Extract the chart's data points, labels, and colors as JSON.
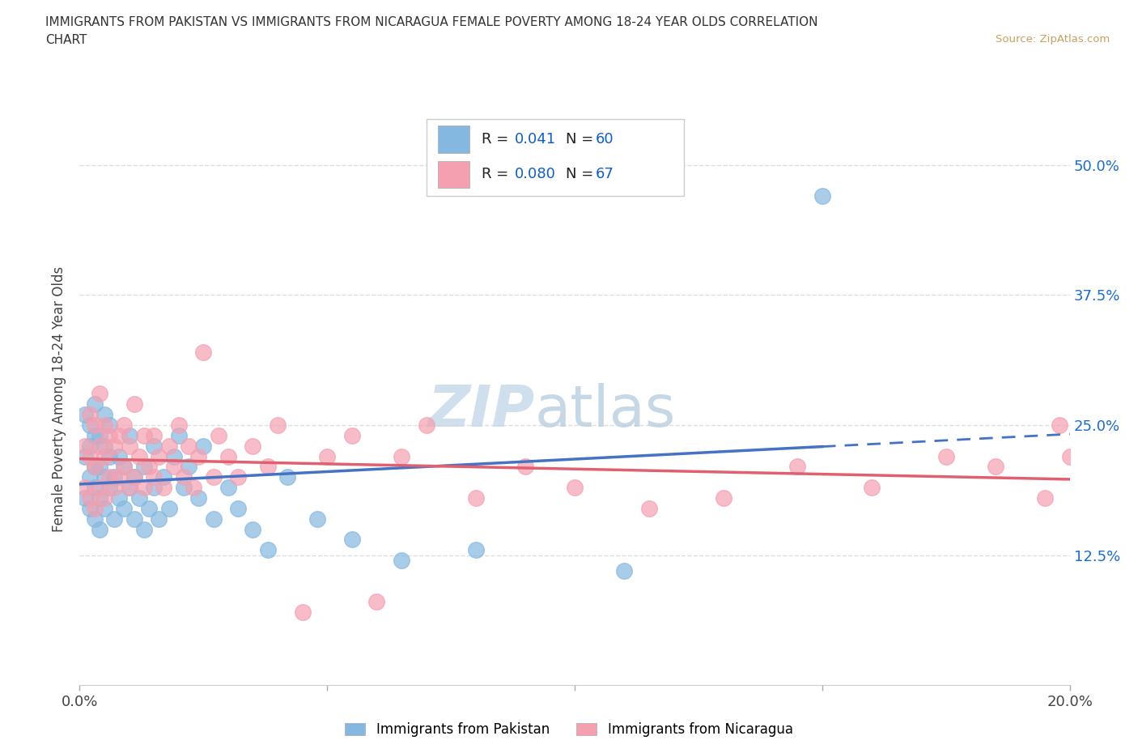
{
  "title_line1": "IMMIGRANTS FROM PAKISTAN VS IMMIGRANTS FROM NICARAGUA FEMALE POVERTY AMONG 18-24 YEAR OLDS CORRELATION",
  "title_line2": "CHART",
  "source": "Source: ZipAtlas.com",
  "ylabel": "Female Poverty Among 18-24 Year Olds",
  "xlim": [
    0.0,
    0.2
  ],
  "ylim": [
    0.0,
    0.55
  ],
  "pakistan_color": "#85b8e0",
  "nicaragua_color": "#f4a0b0",
  "pakistan_line_color": "#4472c4",
  "nicaragua_line_color": "#e06070",
  "pakistan_R": 0.041,
  "pakistan_N": 60,
  "nicaragua_R": 0.08,
  "nicaragua_N": 67,
  "blue_text_color": "#1060c0",
  "pakistan_x": [
    0.001,
    0.001,
    0.001,
    0.002,
    0.002,
    0.002,
    0.002,
    0.003,
    0.003,
    0.003,
    0.003,
    0.003,
    0.004,
    0.004,
    0.004,
    0.004,
    0.005,
    0.005,
    0.005,
    0.005,
    0.006,
    0.006,
    0.006,
    0.007,
    0.007,
    0.008,
    0.008,
    0.009,
    0.009,
    0.01,
    0.01,
    0.011,
    0.011,
    0.012,
    0.013,
    0.013,
    0.014,
    0.015,
    0.015,
    0.016,
    0.017,
    0.018,
    0.019,
    0.02,
    0.021,
    0.022,
    0.024,
    0.025,
    0.027,
    0.03,
    0.032,
    0.035,
    0.038,
    0.042,
    0.048,
    0.055,
    0.065,
    0.08,
    0.11,
    0.15
  ],
  "pakistan_y": [
    0.18,
    0.22,
    0.26,
    0.17,
    0.2,
    0.23,
    0.25,
    0.16,
    0.19,
    0.21,
    0.24,
    0.27,
    0.15,
    0.18,
    0.21,
    0.24,
    0.17,
    0.2,
    0.23,
    0.26,
    0.19,
    0.22,
    0.25,
    0.16,
    0.2,
    0.18,
    0.22,
    0.17,
    0.21,
    0.19,
    0.24,
    0.16,
    0.2,
    0.18,
    0.15,
    0.21,
    0.17,
    0.19,
    0.23,
    0.16,
    0.2,
    0.17,
    0.22,
    0.24,
    0.19,
    0.21,
    0.18,
    0.23,
    0.16,
    0.19,
    0.17,
    0.15,
    0.13,
    0.2,
    0.16,
    0.14,
    0.12,
    0.13,
    0.11,
    0.47
  ],
  "nicaragua_x": [
    0.001,
    0.001,
    0.002,
    0.002,
    0.002,
    0.003,
    0.003,
    0.003,
    0.004,
    0.004,
    0.004,
    0.005,
    0.005,
    0.005,
    0.006,
    0.006,
    0.007,
    0.007,
    0.008,
    0.008,
    0.009,
    0.009,
    0.01,
    0.01,
    0.011,
    0.011,
    0.012,
    0.013,
    0.013,
    0.014,
    0.015,
    0.015,
    0.016,
    0.017,
    0.018,
    0.019,
    0.02,
    0.021,
    0.022,
    0.023,
    0.024,
    0.025,
    0.027,
    0.028,
    0.03,
    0.032,
    0.035,
    0.038,
    0.04,
    0.045,
    0.05,
    0.055,
    0.06,
    0.065,
    0.07,
    0.08,
    0.09,
    0.1,
    0.115,
    0.13,
    0.145,
    0.16,
    0.175,
    0.185,
    0.195,
    0.198,
    0.2
  ],
  "nicaragua_y": [
    0.19,
    0.23,
    0.18,
    0.22,
    0.26,
    0.17,
    0.21,
    0.25,
    0.19,
    0.23,
    0.28,
    0.18,
    0.22,
    0.25,
    0.2,
    0.24,
    0.19,
    0.23,
    0.2,
    0.24,
    0.21,
    0.25,
    0.19,
    0.23,
    0.2,
    0.27,
    0.22,
    0.19,
    0.24,
    0.21,
    0.2,
    0.24,
    0.22,
    0.19,
    0.23,
    0.21,
    0.25,
    0.2,
    0.23,
    0.19,
    0.22,
    0.32,
    0.2,
    0.24,
    0.22,
    0.2,
    0.23,
    0.21,
    0.25,
    0.07,
    0.22,
    0.24,
    0.08,
    0.22,
    0.25,
    0.18,
    0.21,
    0.19,
    0.17,
    0.18,
    0.21,
    0.19,
    0.22,
    0.21,
    0.18,
    0.25,
    0.22
  ]
}
